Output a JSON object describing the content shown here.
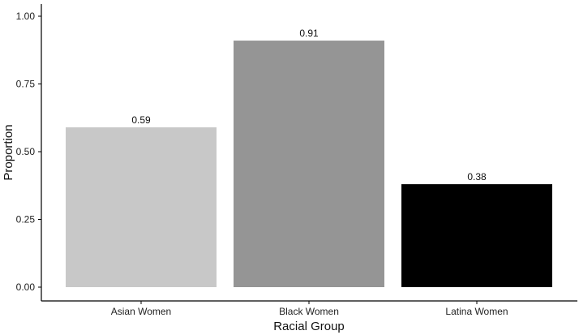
{
  "chart_data": {
    "type": "bar",
    "title": "",
    "xlabel": "Racial Group",
    "ylabel": "Proportion",
    "categories": [
      "Asian Women",
      "Black Women",
      "Latina Women"
    ],
    "values": [
      0.59,
      0.91,
      0.38
    ],
    "data_labels": [
      "0.59",
      "0.91",
      "0.38"
    ],
    "colors": [
      "#c8c8c8",
      "#959595",
      "#000000"
    ],
    "ylim": [
      0,
      1.05
    ],
    "yticks": [
      0,
      0.25,
      0.5,
      0.75,
      1.0
    ],
    "ytick_labels": [
      "0.00",
      "0.25",
      "0.50",
      "0.75",
      "1.00"
    ],
    "grid": false,
    "legend": "none"
  }
}
